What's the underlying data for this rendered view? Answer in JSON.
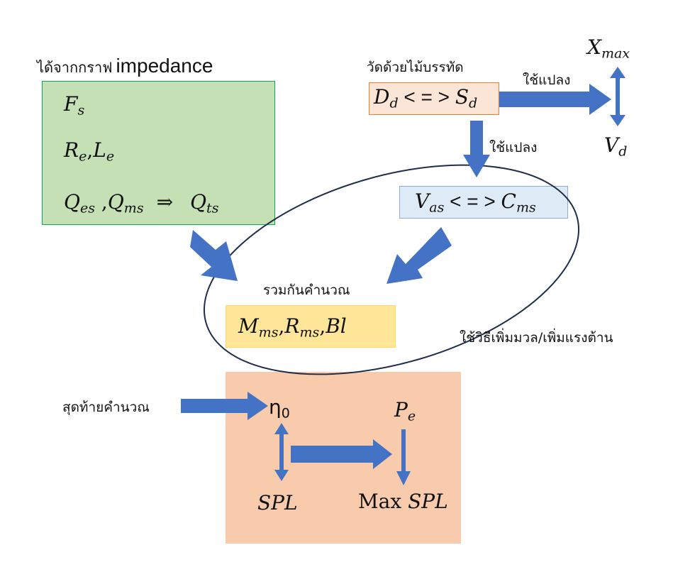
{
  "labels": {
    "from_impedance_prefix": "ได้จากกราฟ",
    "from_impedance_word": "impedance",
    "measure_ruler": "วัดด้วยไม้บรรทัด",
    "use_convert_right": "ใช้แปลง",
    "use_convert_down": "ใช้แปลง",
    "combine_calc": "รวมกันคำนวณ",
    "added_mass_method": "ใช้วิธีเพิ่มมวล/เพิ่มแรงต้าน",
    "final_calc": "สุดท้ายคำนวณ"
  },
  "green_box": {
    "line1": {
      "base": "F",
      "sub": "s"
    },
    "line2": {
      "a_base": "R",
      "a_sub": "e",
      "sep": ",",
      "b_base": "L",
      "b_sub": "e"
    },
    "line3": {
      "a_base": "Q",
      "a_sub": "es",
      "sep": " ,",
      "b_base": "Q",
      "b_sub": "ms",
      "implies": "⇒",
      "c_base": "Q",
      "c_sub": "ts"
    }
  },
  "orange_box": {
    "a_base": "D",
    "a_sub": "d",
    "op": " < = > ",
    "b_base": "S",
    "b_sub": "d"
  },
  "blue_box": {
    "a_base": "V",
    "a_sub": "as",
    "op": " < = > ",
    "b_base": "C",
    "b_sub": "ms"
  },
  "yellow_box": {
    "a_base": "M",
    "a_sub": "ms",
    "sep1": ",",
    "b_base": "R",
    "b_sub": "ms",
    "sep2": ",",
    "c": "Bl"
  },
  "xmax": {
    "base": "X",
    "sub": "max"
  },
  "vd": {
    "base": "V",
    "sub": "d"
  },
  "salmon_box": {
    "eta": {
      "base": "η",
      "sub": "0"
    },
    "pe": {
      "base": "P",
      "sub": "e"
    },
    "spl": "SPL",
    "max_word": "Max",
    "max_spl": "SPL"
  },
  "colors": {
    "arrow": "#4472C4",
    "green_fill": "#C5E0B4",
    "green_border": "#00B050",
    "orange_fill": "#FBE5D6",
    "orange_border": "#ED7D31",
    "blue_fill": "#DEEBF7",
    "blue_border": "#8FAADC",
    "yellow_fill": "#FFE699",
    "yellow_border": "#FFD966",
    "salmon_fill": "#F8CBAD",
    "ellipse": "#1F2D4D"
  }
}
